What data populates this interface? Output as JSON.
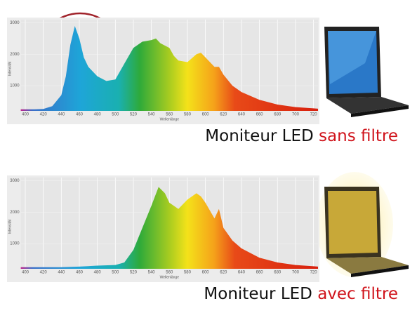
{
  "chart_data": [
    {
      "type": "area",
      "caption": "Moniteur LED",
      "caption_highlight": "sans filtre",
      "xlabel": "Wellenlänge",
      "ylabel": "Intensität",
      "grid": true,
      "xlim": [
        395,
        725
      ],
      "ylim": [
        200,
        3100
      ],
      "xticks": [
        400,
        420,
        440,
        460,
        480,
        500,
        520,
        540,
        560,
        580,
        600,
        620,
        640,
        660,
        680,
        700,
        720
      ],
      "yticks": [
        1000,
        2000,
        3000
      ],
      "x": [
        395,
        400,
        410,
        420,
        430,
        440,
        445,
        450,
        455,
        460,
        465,
        470,
        480,
        490,
        500,
        510,
        520,
        530,
        540,
        545,
        550,
        560,
        565,
        570,
        580,
        590,
        595,
        600,
        610,
        615,
        620,
        630,
        640,
        660,
        680,
        700,
        720,
        725
      ],
      "values": [
        250,
        250,
        250,
        260,
        350,
        700,
        1300,
        2300,
        2900,
        2500,
        1900,
        1600,
        1300,
        1150,
        1200,
        1700,
        2200,
        2400,
        2450,
        2500,
        2350,
        2200,
        1950,
        1800,
        1750,
        2000,
        2050,
        1900,
        1600,
        1600,
        1350,
        1000,
        800,
        550,
        400,
        320,
        280,
        270
      ]
    },
    {
      "type": "area",
      "caption": "Moniteur LED",
      "caption_highlight": "avec filtre",
      "xlabel": "Wellenlänge",
      "ylabel": "Intensität",
      "grid": true,
      "xlim": [
        395,
        725
      ],
      "ylim": [
        200,
        3100
      ],
      "xticks": [
        400,
        420,
        440,
        460,
        480,
        500,
        520,
        540,
        560,
        580,
        600,
        620,
        640,
        660,
        680,
        700,
        720
      ],
      "yticks": [
        1000,
        2000,
        3000
      ],
      "x": [
        395,
        420,
        440,
        460,
        480,
        500,
        510,
        520,
        530,
        540,
        548,
        555,
        560,
        570,
        580,
        590,
        595,
        600,
        610,
        615,
        620,
        630,
        640,
        660,
        680,
        700,
        720,
        725
      ],
      "values": [
        250,
        250,
        250,
        270,
        300,
        320,
        400,
        800,
        1500,
        2200,
        2800,
        2600,
        2300,
        2100,
        2400,
        2600,
        2500,
        2300,
        1800,
        2100,
        1500,
        1100,
        850,
        550,
        400,
        320,
        280,
        270
      ]
    }
  ]
}
